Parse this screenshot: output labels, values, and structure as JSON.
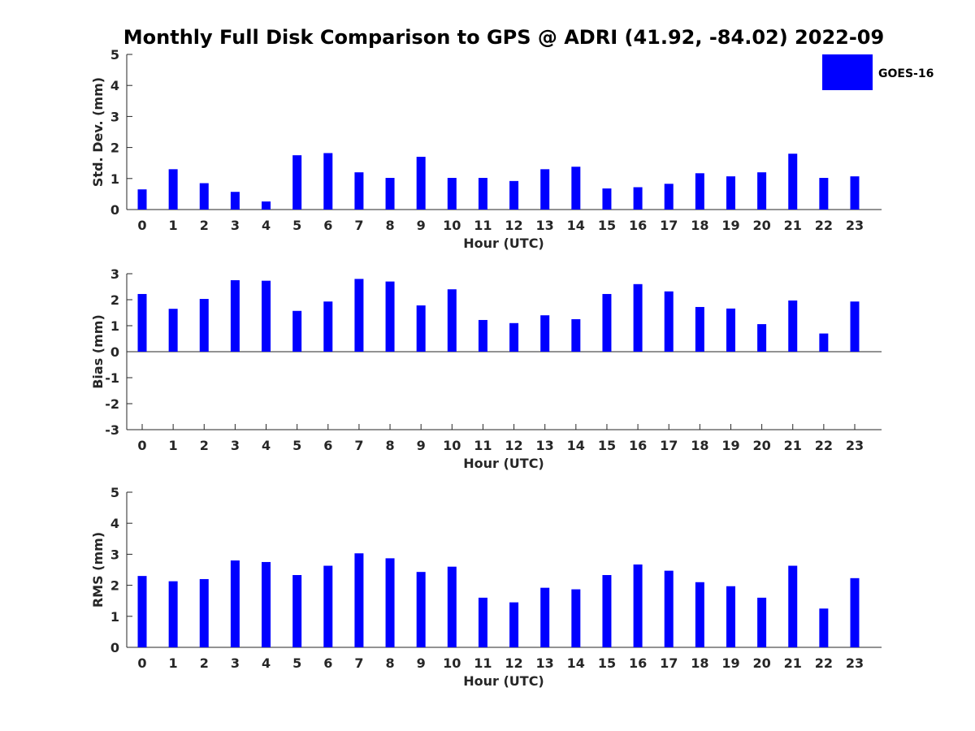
{
  "chart_data": {
    "type": "bar",
    "title": "Monthly Full Disk Comparison to GPS @ ADRI (41.92, -84.02) 2022-09",
    "bar_color": "#0000ff",
    "legend": {
      "entries": [
        "GOES-16"
      ],
      "placement": "top-right"
    },
    "categories": [
      "0",
      "1",
      "2",
      "3",
      "4",
      "5",
      "6",
      "7",
      "8",
      "9",
      "10",
      "11",
      "12",
      "13",
      "14",
      "15",
      "16",
      "17",
      "18",
      "19",
      "20",
      "21",
      "22",
      "23"
    ],
    "panels": [
      {
        "xlabel": "Hour (UTC)",
        "ylabel": "Std. Dev. (mm)",
        "ylim": [
          0,
          5
        ],
        "yticks": [
          "0",
          "1",
          "2",
          "3",
          "4",
          "5"
        ],
        "series": [
          {
            "name": "GOES-16",
            "values": [
              0.65,
              1.3,
              0.85,
              0.57,
              0.26,
              1.75,
              1.82,
              1.2,
              1.02,
              1.7,
              1.02,
              1.02,
              0.92,
              1.3,
              1.38,
              0.68,
              0.72,
              0.83,
              1.17,
              1.07,
              1.2,
              1.8,
              1.02,
              1.07
            ]
          }
        ]
      },
      {
        "xlabel": "Hour (UTC)",
        "ylabel": "Bias (mm)",
        "ylim": [
          -3,
          3
        ],
        "yticks": [
          "-3",
          "-2",
          "-1",
          "0",
          "1",
          "2",
          "3"
        ],
        "series": [
          {
            "name": "GOES-16",
            "values": [
              2.22,
              1.65,
              2.03,
              2.75,
              2.73,
              1.57,
              1.93,
              2.8,
              2.7,
              1.78,
              2.4,
              1.22,
              1.1,
              1.4,
              1.25,
              2.22,
              2.6,
              2.32,
              1.72,
              1.66,
              1.06,
              1.97,
              0.7,
              1.93
            ]
          }
        ]
      },
      {
        "xlabel": "Hour (UTC)",
        "ylabel": "RMS (mm)",
        "ylim": [
          0,
          5
        ],
        "yticks": [
          "0",
          "1",
          "2",
          "3",
          "4",
          "5"
        ],
        "series": [
          {
            "name": "GOES-16",
            "values": [
              2.3,
              2.13,
              2.2,
              2.8,
              2.75,
              2.33,
              2.63,
              3.03,
              2.87,
              2.43,
              2.6,
              1.6,
              1.45,
              1.92,
              1.87,
              2.33,
              2.67,
              2.47,
              2.1,
              1.97,
              1.6,
              2.63,
              1.25,
              2.23
            ]
          }
        ]
      }
    ]
  }
}
